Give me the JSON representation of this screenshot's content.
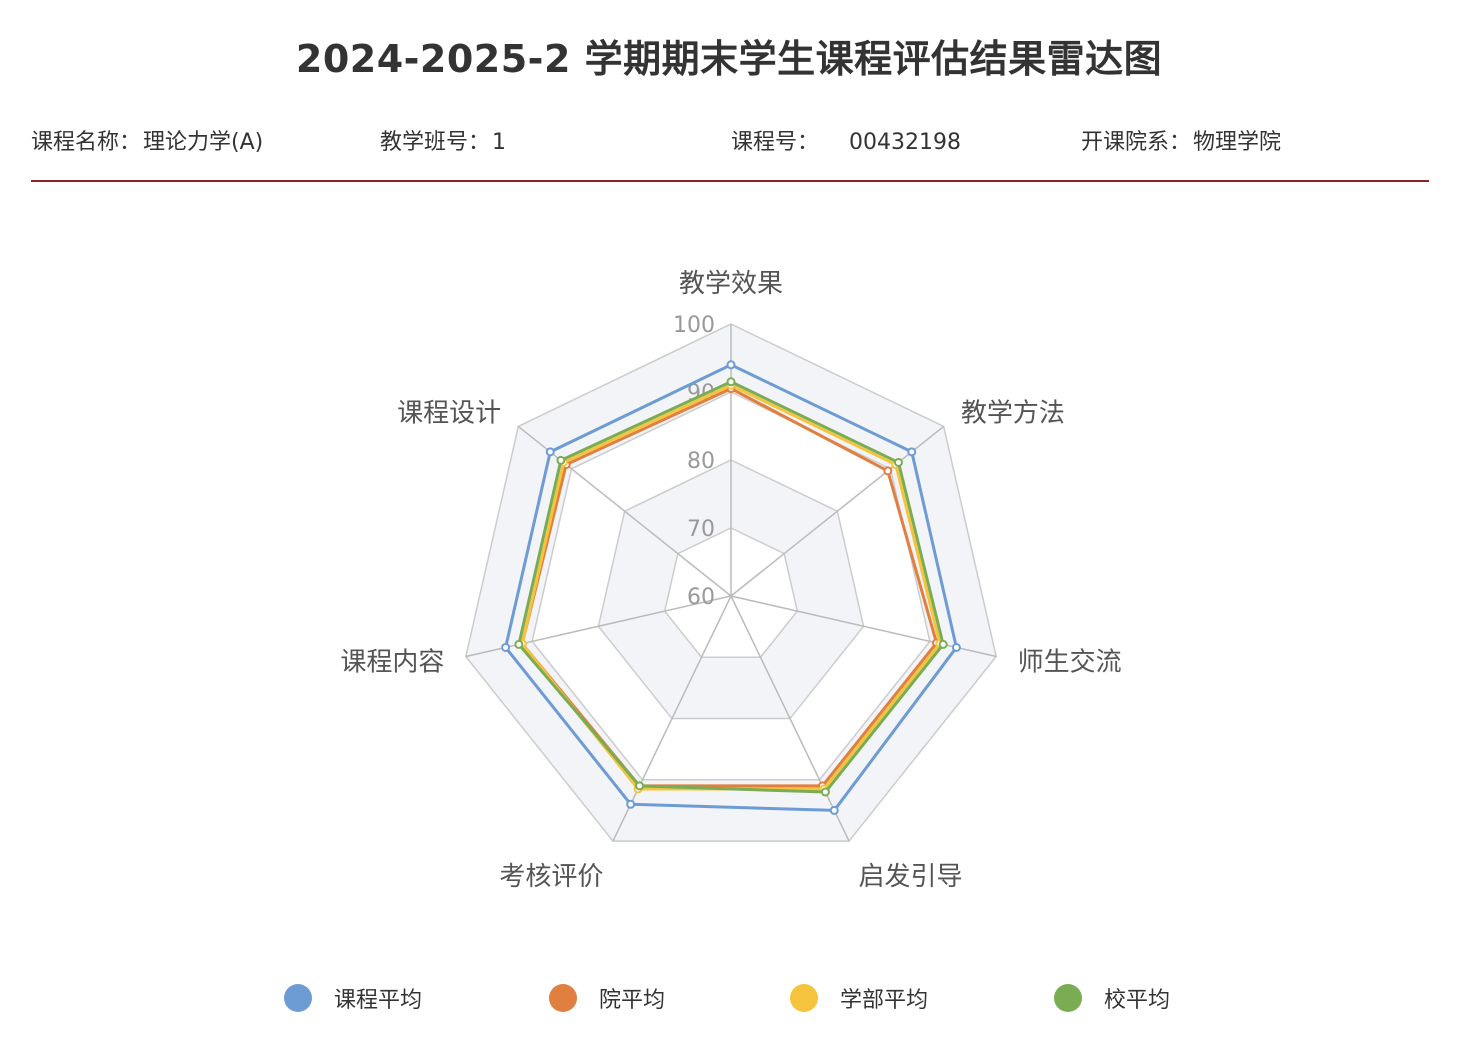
{
  "header": {
    "title": "2024-2025-2 学期期末学生课程评估结果雷达图",
    "course_name_label": "课程名称：",
    "course_name_value": "理论力学(A)",
    "class_no_label": "教学班号：",
    "class_no_value": "1",
    "course_no_label": "课程号：",
    "course_no_value": "00432198",
    "department_label": "开课院系：",
    "department_value": "物理学院"
  },
  "colors": {
    "divider": "#8b2525",
    "grid_line": "#cccccc",
    "band_shade": "#f3f4f8",
    "axis_label": "#555555",
    "tick_label": "#999999"
  },
  "chart_data": {
    "type": "radar",
    "title": "",
    "indicators": [
      "教学效果",
      "教学方法",
      "师生交流",
      "启发引导",
      "考核评价",
      "课程内容",
      "课程设计"
    ],
    "rmin": 60,
    "rmax": 100,
    "ticks": [
      60,
      70,
      80,
      90,
      100
    ],
    "grid": true,
    "legend_position": "bottom",
    "series": [
      {
        "name": "课程平均",
        "color": "#6d9bd3",
        "values": [
          94,
          94,
          94,
          95,
          94,
          94,
          94
        ]
      },
      {
        "name": "院平均",
        "color": "#e07f3f",
        "values": [
          90.5,
          89.5,
          91,
          91,
          91,
          91.5,
          91
        ]
      },
      {
        "name": "学部平均",
        "color": "#f5c43c",
        "values": [
          91,
          91,
          91.5,
          91.5,
          91.5,
          91.5,
          91.5
        ]
      },
      {
        "name": "校平均",
        "color": "#7aac54",
        "values": [
          91.5,
          91.5,
          92,
          92,
          91,
          92,
          92
        ]
      }
    ]
  }
}
